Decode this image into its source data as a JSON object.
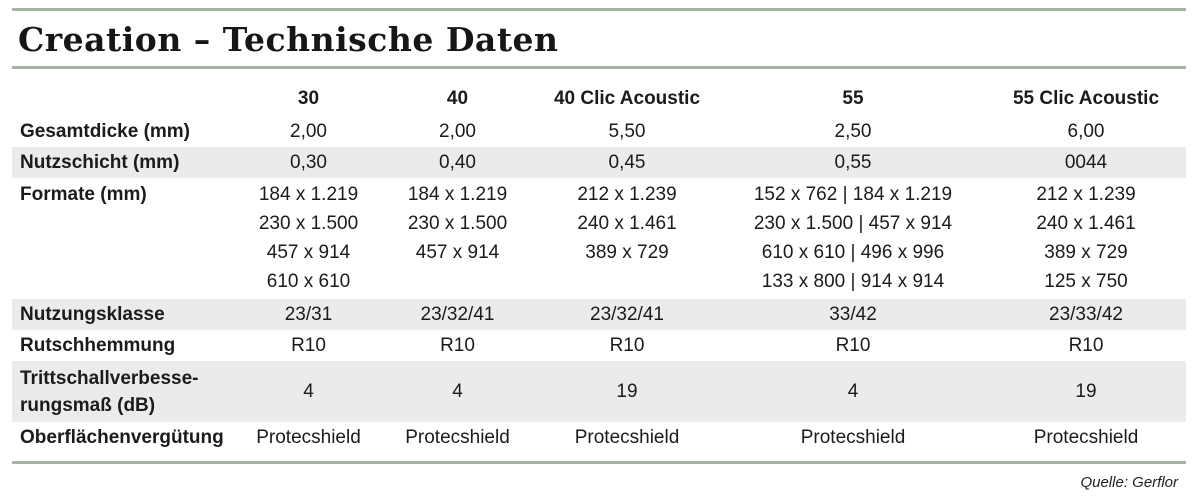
{
  "title": "Creation – Technische Daten",
  "columns": [
    "30",
    "40",
    "40 Clic Acoustic",
    "55",
    "55 Clic Acoustic"
  ],
  "rows": {
    "gesamtdicke": {
      "label": "Gesamtdicke (mm)",
      "values": [
        "2,00",
        "2,00",
        "5,50",
        "2,50",
        "6,00"
      ]
    },
    "nutzschicht": {
      "label": "Nutzschicht (mm)",
      "values": [
        "0,30",
        "0,40",
        "0,45",
        "0,55",
        "0044"
      ]
    },
    "formate": {
      "label": "Formate (mm)",
      "values": [
        [
          "184 x 1.219",
          "230 x 1.500",
          "457 x 914",
          "610 x 610"
        ],
        [
          "184 x 1.219",
          "230 x 1.500",
          "457 x 914"
        ],
        [
          "212 x 1.239",
          "240 x 1.461",
          "389 x 729"
        ],
        [
          "152 x 762 | 184 x 1.219",
          "230 x 1.500 | 457 x 914",
          "610 x 610 | 496 x 996",
          "133 x 800 | 914 x 914"
        ],
        [
          "212 x 1.239",
          "240 x 1.461",
          "389 x 729",
          "125 x 750"
        ]
      ]
    },
    "nutzungsklasse": {
      "label": "Nutzungsklasse",
      "values": [
        "23/31",
        "23/32/41",
        "23/32/41",
        "33/42",
        "23/33/42"
      ]
    },
    "rutschhemmung": {
      "label": "Rutschhemmung",
      "values": [
        "R10",
        "R10",
        "R10",
        "R10",
        "R10"
      ]
    },
    "trittschall": {
      "label_line1": "Trittschallverbesse-",
      "label_line2": "rungsmaß (dB)",
      "values": [
        "4",
        "4",
        "19",
        "4",
        "19"
      ]
    },
    "oberflaeche": {
      "label": "Oberflächenvergütung",
      "values": [
        "Protecshield",
        "Protecshield",
        "Protecshield",
        "Protecshield",
        "Protecshield"
      ]
    }
  },
  "source": "Quelle: Gerflor",
  "colors": {
    "rule": "#a9b1a4",
    "row_shade": "#ebebeb",
    "text": "#1b1b1b"
  }
}
